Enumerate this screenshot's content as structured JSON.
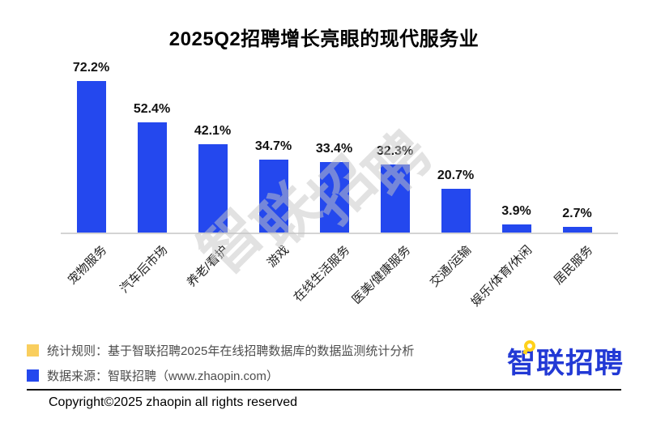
{
  "title": "2025Q2招聘增长亮眼的现代服务业",
  "chart_data": {
    "type": "bar",
    "title": "2025Q2招聘增长亮眼的现代服务业",
    "categories": [
      "宠物服务",
      "汽车后市场",
      "养老/看护",
      "游戏",
      "在线生活服务",
      "医美/健康服务",
      "交通/运输",
      "娱乐/体育/休闲",
      "居民服务"
    ],
    "values": [
      72.2,
      52.4,
      42.1,
      34.7,
      33.4,
      32.3,
      20.7,
      3.9,
      2.7
    ],
    "value_suffix": "%",
    "xlabel": "",
    "ylabel": "",
    "ylim": [
      0,
      75
    ],
    "grid": false,
    "legend_position": "none",
    "bar_color": "#2448ee"
  },
  "watermark": "智联招聘",
  "footer": {
    "notes": [
      {
        "swatch_color": "#f9ce5e",
        "text": "统计规则：基于智联招聘2025年在线招聘数据库的数据监测统计分析"
      },
      {
        "swatch_color": "#2448ee",
        "text": "数据来源：智联招聘（www.zhaopin.com）"
      }
    ],
    "logo_text": "智联招聘",
    "copyright": "Copyright©2025 zhaopin all rights reserved"
  },
  "colors": {
    "bar_blue": "#2448ee",
    "legend_yellow": "#f9ce5e",
    "logo_blue": "#2239d5",
    "logo_yellow": "#ffd11a",
    "axis_gray": "#d4d4d4",
    "watermark_gray": "#c6c6c6"
  }
}
